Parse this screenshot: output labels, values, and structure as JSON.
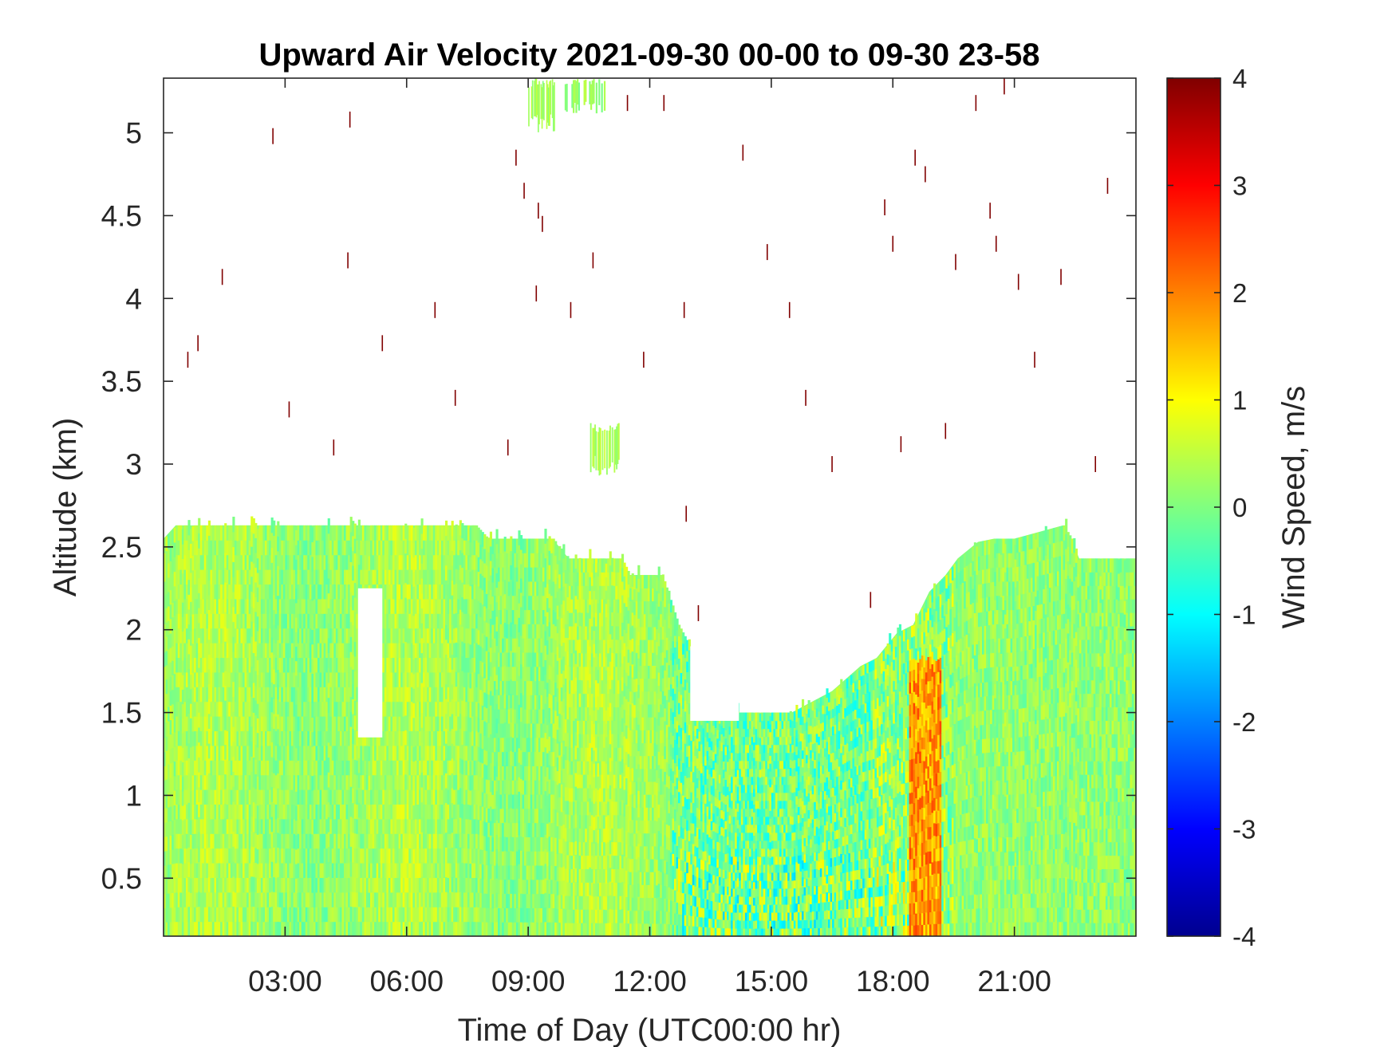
{
  "chart_data": {
    "type": "heatmap",
    "title": "Upward Air Velocity 2021-09-30 00-00 to 09-30 23-58",
    "xlabel": "Time of Day (UTC00:00 hr)",
    "ylabel": "Altitude (km)",
    "xlim": [
      0,
      24
    ],
    "ylim": [
      0.15,
      5.33
    ],
    "x_ticks": [
      {
        "value": 3,
        "label": "03:00"
      },
      {
        "value": 6,
        "label": "06:00"
      },
      {
        "value": 9,
        "label": "09:00"
      },
      {
        "value": 12,
        "label": "12:00"
      },
      {
        "value": 15,
        "label": "15:00"
      },
      {
        "value": 18,
        "label": "18:00"
      },
      {
        "value": 21,
        "label": "21:00"
      }
    ],
    "y_ticks": [
      {
        "value": 0.5,
        "label": "0.5"
      },
      {
        "value": 1,
        "label": "1"
      },
      {
        "value": 1.5,
        "label": "1.5"
      },
      {
        "value": 2,
        "label": "2"
      },
      {
        "value": 2.5,
        "label": "2.5"
      },
      {
        "value": 3,
        "label": "3"
      },
      {
        "value": 3.5,
        "label": "3.5"
      },
      {
        "value": 4,
        "label": "4"
      },
      {
        "value": 4.5,
        "label": "4.5"
      },
      {
        "value": 5,
        "label": "5"
      }
    ],
    "colorbar": {
      "label": "Wind Speed, m/s",
      "range": [
        -4,
        4
      ],
      "colormap": "jet",
      "ticks": [
        {
          "value": 4,
          "label": "4"
        },
        {
          "value": 3,
          "label": "3"
        },
        {
          "value": 2,
          "label": "2"
        },
        {
          "value": 1,
          "label": "1"
        },
        {
          "value": 0,
          "label": "0"
        },
        {
          "value": -1,
          "label": "-1"
        },
        {
          "value": -2,
          "label": "-2"
        },
        {
          "value": -3,
          "label": "-3"
        },
        {
          "value": -4,
          "label": "-4"
        }
      ],
      "colors": [
        "#00008f",
        "#0000ff",
        "#0080ff",
        "#00ffff",
        "#80ff80",
        "#ffff00",
        "#ff8000",
        "#ff0000",
        "#800000"
      ]
    },
    "boundary_layer_top_km": {
      "time_hr": [
        0,
        0.3,
        2.5,
        4.5,
        6,
        7.7,
        8,
        9.6,
        10,
        11.3,
        11.5,
        12.3,
        12.7,
        13.2,
        13.5,
        14,
        15,
        15.5,
        16.5,
        17.2,
        17.6,
        18.1,
        18.5,
        18.9,
        19.3,
        19.6,
        20.1,
        20.5,
        21,
        22.2,
        22.4,
        22.6,
        24
      ],
      "altitude_km": [
        2.55,
        2.63,
        2.63,
        2.63,
        2.63,
        2.63,
        2.55,
        2.55,
        2.43,
        2.43,
        2.33,
        2.33,
        2.03,
        1.8,
        1.65,
        1.5,
        1.5,
        1.5,
        1.63,
        1.78,
        1.83,
        1.98,
        2.03,
        2.23,
        2.33,
        2.43,
        2.53,
        2.55,
        2.55,
        2.63,
        2.55,
        2.43,
        2.43
      ]
    },
    "data_gaps": [
      {
        "time_hr": [
          4.8,
          5.4
        ],
        "altitude_km": [
          1.35,
          2.25
        ]
      },
      {
        "time_hr": [
          13.0,
          14.2
        ],
        "altitude_km": [
          1.45,
          1.9
        ]
      }
    ],
    "upper_patches": [
      {
        "time_hr": [
          9.0,
          9.7
        ],
        "altitude_km": [
          5.03,
          5.33
        ],
        "value_ms": 0.3
      },
      {
        "time_hr": [
          9.9,
          10.9
        ],
        "altitude_km": [
          5.13,
          5.33
        ],
        "value_ms": 0.2
      },
      {
        "time_hr": [
          10.5,
          11.3
        ],
        "altitude_km": [
          2.95,
          3.25
        ],
        "value_ms": 0.4
      }
    ],
    "strong_updraft_band": {
      "time_hr": [
        18.4,
        19.2
      ],
      "altitude_km": [
        0.15,
        1.8
      ],
      "value_ms": 1.8
    },
    "note_scatter_points": {
      "time_hr": [
        0.6,
        0.85,
        1.45,
        2.7,
        3.1,
        4.2,
        4.55,
        4.6,
        5.4,
        6.7,
        7.2,
        8.5,
        8.7,
        8.9,
        9.2,
        9.25,
        9.35,
        10.05,
        10.6,
        11.45,
        11.85,
        12.35,
        12.85,
        12.9,
        13.2,
        14.3,
        14.9,
        15.45,
        15.85,
        16.5,
        17.45,
        17.8,
        18.0,
        18.2,
        18.55,
        18.8,
        19.3,
        19.55,
        20.05,
        20.4,
        20.55,
        20.75,
        21.1,
        21.5,
        22.15,
        23.0,
        23.3
      ],
      "altitude_km": [
        3.63,
        3.73,
        4.13,
        4.98,
        3.33,
        3.1,
        4.23,
        5.08,
        3.73,
        3.93,
        3.4,
        3.1,
        4.85,
        4.65,
        4.03,
        4.53,
        4.45,
        3.93,
        4.23,
        5.18,
        3.63,
        5.18,
        3.93,
        2.7,
        2.1,
        4.88,
        4.28,
        3.93,
        3.4,
        3.0,
        2.18,
        4.55,
        4.33,
        3.12,
        4.85,
        4.75,
        3.2,
        4.22,
        5.18,
        4.53,
        4.33,
        5.28,
        4.1,
        3.63,
        4.13,
        3.0,
        4.68
      ],
      "value_ms": 4
    }
  }
}
